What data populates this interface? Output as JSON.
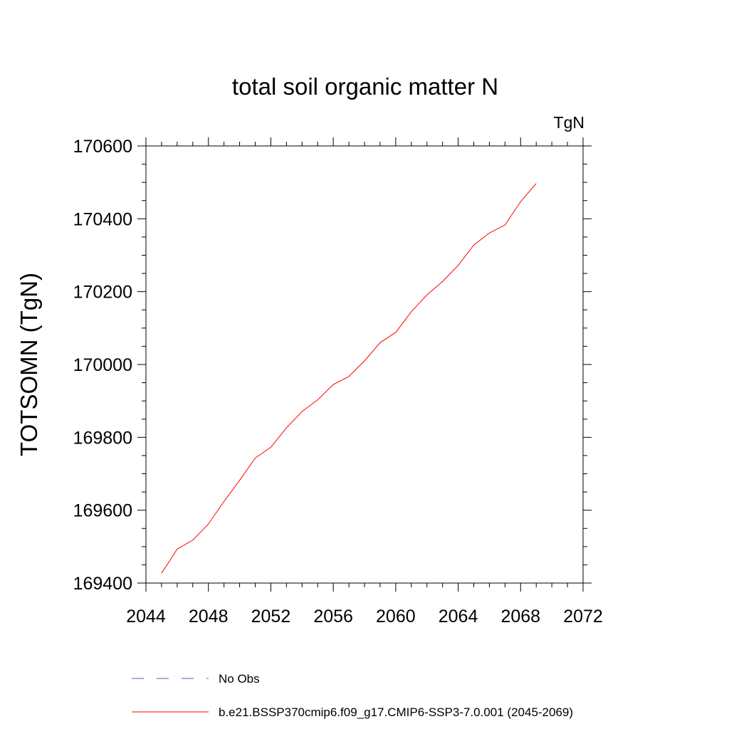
{
  "chart_data": {
    "type": "line",
    "title": "total soil organic matter N",
    "units_label": "TgN",
    "xlabel": "",
    "ylabel": "TOTSOMN  (TgN)",
    "xlim": [
      2044,
      2072
    ],
    "ylim": [
      169400,
      170600
    ],
    "x_ticks": [
      2044,
      2048,
      2052,
      2056,
      2060,
      2064,
      2068,
      2072
    ],
    "y_ticks": [
      169400,
      169600,
      169800,
      170000,
      170200,
      170400,
      170600
    ],
    "x_tick_labels": [
      "2044",
      "2048",
      "2052",
      "2056",
      "2060",
      "2064",
      "2068",
      "2072"
    ],
    "y_tick_labels": [
      "169400",
      "169600",
      "169800",
      "170000",
      "170200",
      "170400",
      "170600"
    ],
    "grid": false,
    "legend_position": "bottom",
    "series": [
      {
        "name": "No Obs",
        "color": "#5a5ab4",
        "dash": "dashed",
        "x": [],
        "y": []
      },
      {
        "name": "b.e21.BSSP370cmip6.f09_g17.CMIP6-SSP3-7.0.001 (2045-2069)",
        "color": "#ff0000",
        "dash": "solid",
        "x": [
          2045,
          2046,
          2047,
          2048,
          2049,
          2050,
          2051,
          2052,
          2053,
          2054,
          2055,
          2056,
          2057,
          2058,
          2059,
          2060,
          2061,
          2062,
          2063,
          2064,
          2065,
          2066,
          2067,
          2068,
          2069
        ],
        "y": [
          169427,
          169493,
          169518,
          169562,
          169624,
          169682,
          169743,
          169773,
          169826,
          169871,
          169903,
          169945,
          169967,
          170010,
          170060,
          170088,
          170145,
          170191,
          170228,
          170272,
          170328,
          170361,
          170383,
          170447,
          170497
        ]
      }
    ]
  }
}
